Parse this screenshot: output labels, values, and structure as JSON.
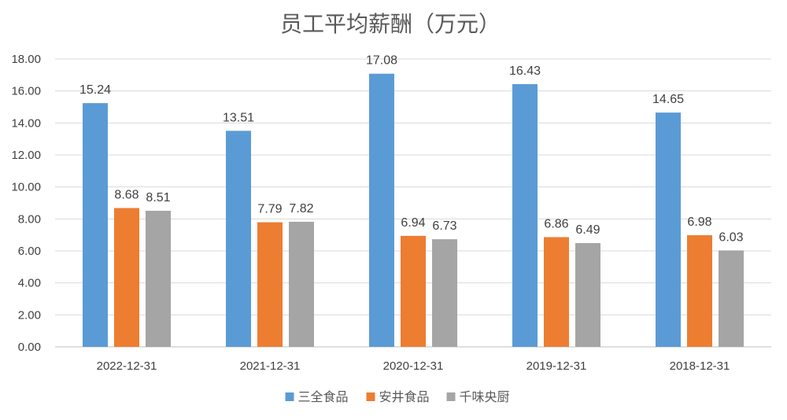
{
  "chart_data": {
    "type": "bar",
    "title": "员工平均薪酬（万元）",
    "categories": [
      "2022-12-31",
      "2021-12-31",
      "2020-12-31",
      "2019-12-31",
      "2018-12-31"
    ],
    "series": [
      {
        "name": "三全食品",
        "color": "#5B9BD5",
        "values": [
          15.24,
          13.51,
          17.08,
          16.43,
          14.65
        ],
        "labels": [
          "15.24",
          "13.51",
          "17.08",
          "16.43",
          "14.65"
        ]
      },
      {
        "name": "安井食品",
        "color": "#ED7D31",
        "values": [
          8.68,
          7.79,
          6.94,
          6.86,
          6.98
        ],
        "labels": [
          "8.68",
          "7.79",
          "6.94",
          "6.86",
          "6.98"
        ]
      },
      {
        "name": "千味央厨",
        "color": "#A5A5A5",
        "values": [
          8.51,
          7.82,
          6.73,
          6.49,
          6.03
        ],
        "labels": [
          "8.51",
          "7.82",
          "6.73",
          "6.49",
          "6.03"
        ]
      }
    ],
    "yticks": [
      "0.00",
      "2.00",
      "4.00",
      "6.00",
      "8.00",
      "10.00",
      "12.00",
      "14.00",
      "16.00",
      "18.00"
    ],
    "ylim": [
      0,
      18
    ],
    "grid": true,
    "legend_position": "bottom"
  }
}
